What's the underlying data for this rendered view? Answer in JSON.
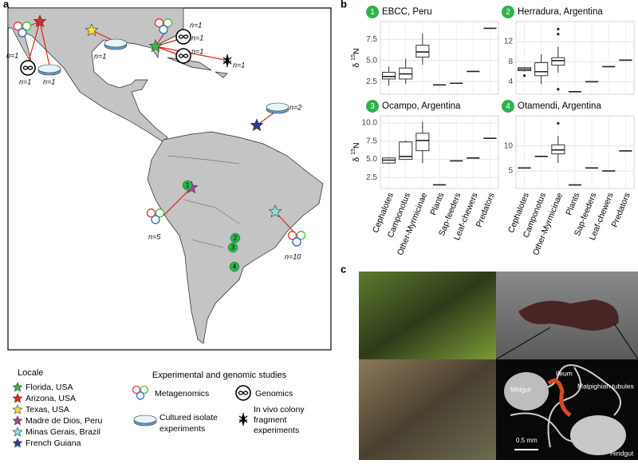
{
  "panel_labels": [
    "a",
    "b",
    "c"
  ],
  "map": {
    "annotations": [
      "n=1",
      "n=1",
      "n=1",
      "n=1",
      "n=1",
      "n=1",
      "n=1",
      "n=1",
      "n=2",
      "n=5",
      "n=10"
    ]
  },
  "legend": {
    "locale_title": "Locale",
    "locales": [
      {
        "name": "Florida, USA",
        "color": "#3cb44b"
      },
      {
        "name": "Arizona, USA",
        "color": "#e6261f"
      },
      {
        "name": "Texas, USA",
        "color": "#f2e53c"
      },
      {
        "name": "Madre de Dios, Peru",
        "color": "#b0409e"
      },
      {
        "name": "Minas Gerais, Brazil",
        "color": "#8ee0e0"
      },
      {
        "name": "French Guiana",
        "color": "#2a3b9c"
      }
    ],
    "studies_title": "Experimental and genomic studies",
    "metagenomics": "Metagenomics",
    "genomics": "Genomics",
    "cultured": [
      "Cultured isolate",
      "experiments"
    ],
    "in_vivo": [
      "In vivo colony",
      "fragment",
      "experiments"
    ]
  },
  "chart_data": [
    {
      "type": "box",
      "badge": "1",
      "title": "EBCC, Peru",
      "y_label": {
        "prefix": "δ ",
        "sup": "15",
        "suffix": "N"
      },
      "ylim": [
        1,
        9.6
      ],
      "yticks": [
        2.5,
        {
          "value": 5,
          "label": "5.0"
        },
        7.5
      ],
      "boxes": [
        {
          "min": 2.0,
          "q1": 2.8,
          "median": 3.1,
          "q3": 3.6,
          "max": 4.3
        },
        {
          "min": 2.2,
          "q1": 2.8,
          "median": 3.4,
          "q3": 4.1,
          "max": 5.2
        },
        {
          "min": 4.5,
          "q1": 5.4,
          "median": 6.0,
          "q3": 6.8,
          "max": 8.2
        },
        {
          "median": 2.1
        },
        {
          "median": 2.3
        },
        {
          "median": 3.7
        },
        {
          "median": 8.8
        }
      ]
    },
    {
      "type": "box",
      "badge": "2",
      "title": "Herradura, Argentina",
      "ylim": [
        1.5,
        16
      ],
      "yticks": [
        4,
        8,
        12
      ],
      "boxes": [
        {
          "min": 6.0,
          "q1": 6.2,
          "median": 6.5,
          "q3": 6.8,
          "max": 6.9,
          "outliers": [
            5.2
          ]
        },
        {
          "min": 3.5,
          "q1": 5.2,
          "median": 6.0,
          "q3": 7.8,
          "max": 9.5
        },
        {
          "min": 5.8,
          "q1": 7.3,
          "median": 8.2,
          "q3": 8.8,
          "max": 11,
          "outliers": [
            13.5,
            14.5,
            2.5
          ]
        },
        {
          "median": 2.0
        },
        {
          "median": 4.0
        },
        {
          "median": 7.0
        },
        {
          "median": 8.3
        }
      ]
    },
    {
      "type": "box",
      "badge": "3",
      "title": "Ocampo, Argentina",
      "y_label": {
        "prefix": "δ ",
        "sup": "15",
        "suffix": "N"
      },
      "categories": [
        "Cephalotes",
        "Camponotus",
        "Other-Myrmicinae",
        "Plants",
        "Sap-feeders",
        "Leaf-chewers",
        "Predators"
      ],
      "ylim": [
        1,
        11
      ],
      "yticks": [
        2.5,
        {
          "value": 5,
          "label": "5.0"
        },
        7.5,
        {
          "value": 10,
          "label": "10.0"
        }
      ],
      "boxes": [
        {
          "min": 4.4,
          "q1": 4.5,
          "median": 4.9,
          "q3": 5.2,
          "max": 5.3
        },
        {
          "min": 5.0,
          "q1": 5.0,
          "median": 5.4,
          "q3": 7.4,
          "max": 7.6
        },
        {
          "min": 4.5,
          "q1": 6.2,
          "median": 7.6,
          "q3": 8.6,
          "max": 10.2
        },
        {
          "median": 1.5
        },
        {
          "median": 4.8
        },
        {
          "median": 5.2
        },
        {
          "median": 7.9
        }
      ]
    },
    {
      "type": "box",
      "badge": "4",
      "title": "Otamendi, Argentina",
      "categories": [
        "Cephalotes",
        "Camponotus",
        "Other-Myrmicinae",
        "Plants",
        "Sap-feeders",
        "Leaf-chewers",
        "Predators"
      ],
      "ylim": [
        1.5,
        16
      ],
      "yticks": [
        5,
        10
      ],
      "boxes": [
        {
          "median": 5.6
        },
        {
          "median": 7.9
        },
        {
          "min": 6.6,
          "q1": 8.4,
          "median": 9.2,
          "q3": 10.2,
          "max": 12,
          "outliers": [
            14.5
          ]
        },
        {
          "median": 2.2
        },
        {
          "median": 5.6
        },
        {
          "median": 5.0
        },
        {
          "median": 9.0
        }
      ]
    }
  ],
  "photo_labels": {
    "midgut": "Midgut",
    "ileum": "Ileum",
    "malpighian": "Malpighian tubules",
    "hindgut": "Hindgut",
    "scale": "0.5 mm"
  }
}
